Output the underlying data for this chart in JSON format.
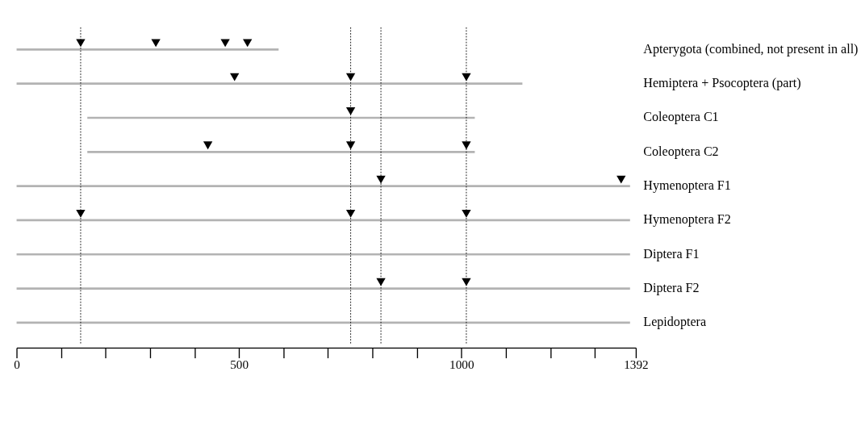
{
  "chart_data": {
    "type": "bar",
    "orientation": "horizontal",
    "categories": [
      "Apterygota (combined, not present in all)",
      "Hemiptera + Psocoptera (part)",
      "Coleoptera C1",
      "Coleoptera C2",
      "Hymenoptera F1",
      "Hymenoptera F2",
      "Diptera F1",
      "Diptera F2",
      "Lepidoptera"
    ],
    "series": [
      {
        "color": "#b3b3b3",
        "base": [
          0,
          0,
          159,
          159,
          0,
          0,
          0,
          0,
          0
        ],
        "values": [
          589,
          1137,
          871,
          871,
          1379,
          1379,
          1379,
          1379,
          1379
        ]
      },
      {
        "type": "scatter",
        "color": "#000000",
        "marker": "triangle",
        "values": [
          144,
          313,
          469,
          519,
          490,
          751,
          1011,
          751,
          430,
          751,
          1011,
          819,
          1359,
          144,
          751,
          1011,
          819,
          1011
        ],
        "x": [
          "Apterygota (combined, not present in all)",
          "Apterygota (combined, not present in all)",
          "Apterygota (combined, not present in all)",
          "Apterygota (combined, not present in all)",
          "Hemiptera + Psocoptera (part)",
          "Hemiptera + Psocoptera (part)",
          "Hemiptera + Psocoptera (part)",
          "Coleoptera C1",
          "Coleoptera C2",
          "Coleoptera C2",
          "Coleoptera C2",
          "Hymenoptera F1",
          "Hymenoptera F1",
          "Hymenoptera F2",
          "Hymenoptera F2",
          "Hymenoptera F2",
          "Diptera F2",
          "Diptera F2"
        ]
      }
    ],
    "xlim": [
      0,
      1392
    ],
    "xticks": [
      0,
      {
        "value": 100,
        "label": null
      },
      {
        "value": 200,
        "label": null
      },
      {
        "value": 300,
        "label": null
      },
      {
        "value": 400,
        "label": null
      },
      500,
      {
        "value": 600,
        "label": null
      },
      {
        "value": 700,
        "label": null
      },
      {
        "value": 800,
        "label": null
      },
      {
        "value": 900,
        "label": null
      },
      1000,
      {
        "value": 1100,
        "label": null
      },
      {
        "value": 1200,
        "label": null
      },
      {
        "value": 1300,
        "label": null
      },
      1392
    ],
    "ref_lines": [
      {
        "axis": "x",
        "value": 144,
        "color": "#000000",
        "line_style": "dotted"
      },
      {
        "axis": "x",
        "value": 751,
        "color": "#000000",
        "line_style": "dotted"
      },
      {
        "axis": "x",
        "value": 819,
        "color": "#000000",
        "line_style": "dotted"
      },
      {
        "axis": "x",
        "value": 1011,
        "color": "#000000",
        "line_style": "dotted"
      }
    ],
    "grid": false,
    "legend": false
  }
}
